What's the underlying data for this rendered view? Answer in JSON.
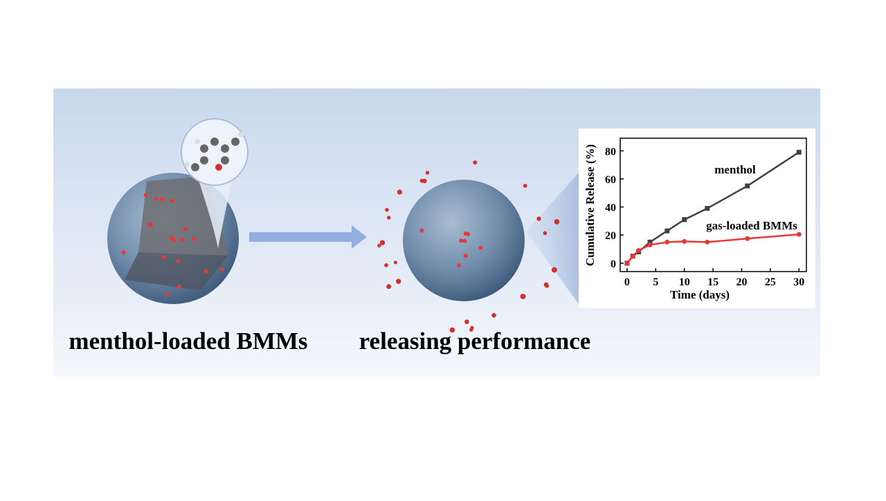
{
  "labels": {
    "left": "menthol-loaded BMMs",
    "middle": "releasing performance"
  },
  "chart_data": {
    "type": "line",
    "xlabel": "Time (days)",
    "ylabel": "Cumulative Release (%)",
    "xlim": [
      -1.2,
      31.3
    ],
    "ylim": [
      -6,
      89
    ],
    "xticks": [
      0,
      5,
      10,
      15,
      20,
      25,
      30
    ],
    "yticks": [
      0,
      20,
      40,
      60,
      80
    ],
    "x": [
      0,
      1,
      2,
      4,
      7,
      10,
      14,
      21,
      30
    ],
    "series": [
      {
        "name": "menthol",
        "color": "#404040",
        "marker": "square",
        "values": [
          0,
          5,
          8,
          15,
          23,
          31,
          39,
          55,
          79
        ]
      },
      {
        "name": "gas-loaded BMMs",
        "color": "#e53935",
        "marker": "circle",
        "values": [
          0,
          5,
          9,
          13,
          15,
          15.5,
          15,
          17.5,
          20.5
        ]
      }
    ]
  }
}
